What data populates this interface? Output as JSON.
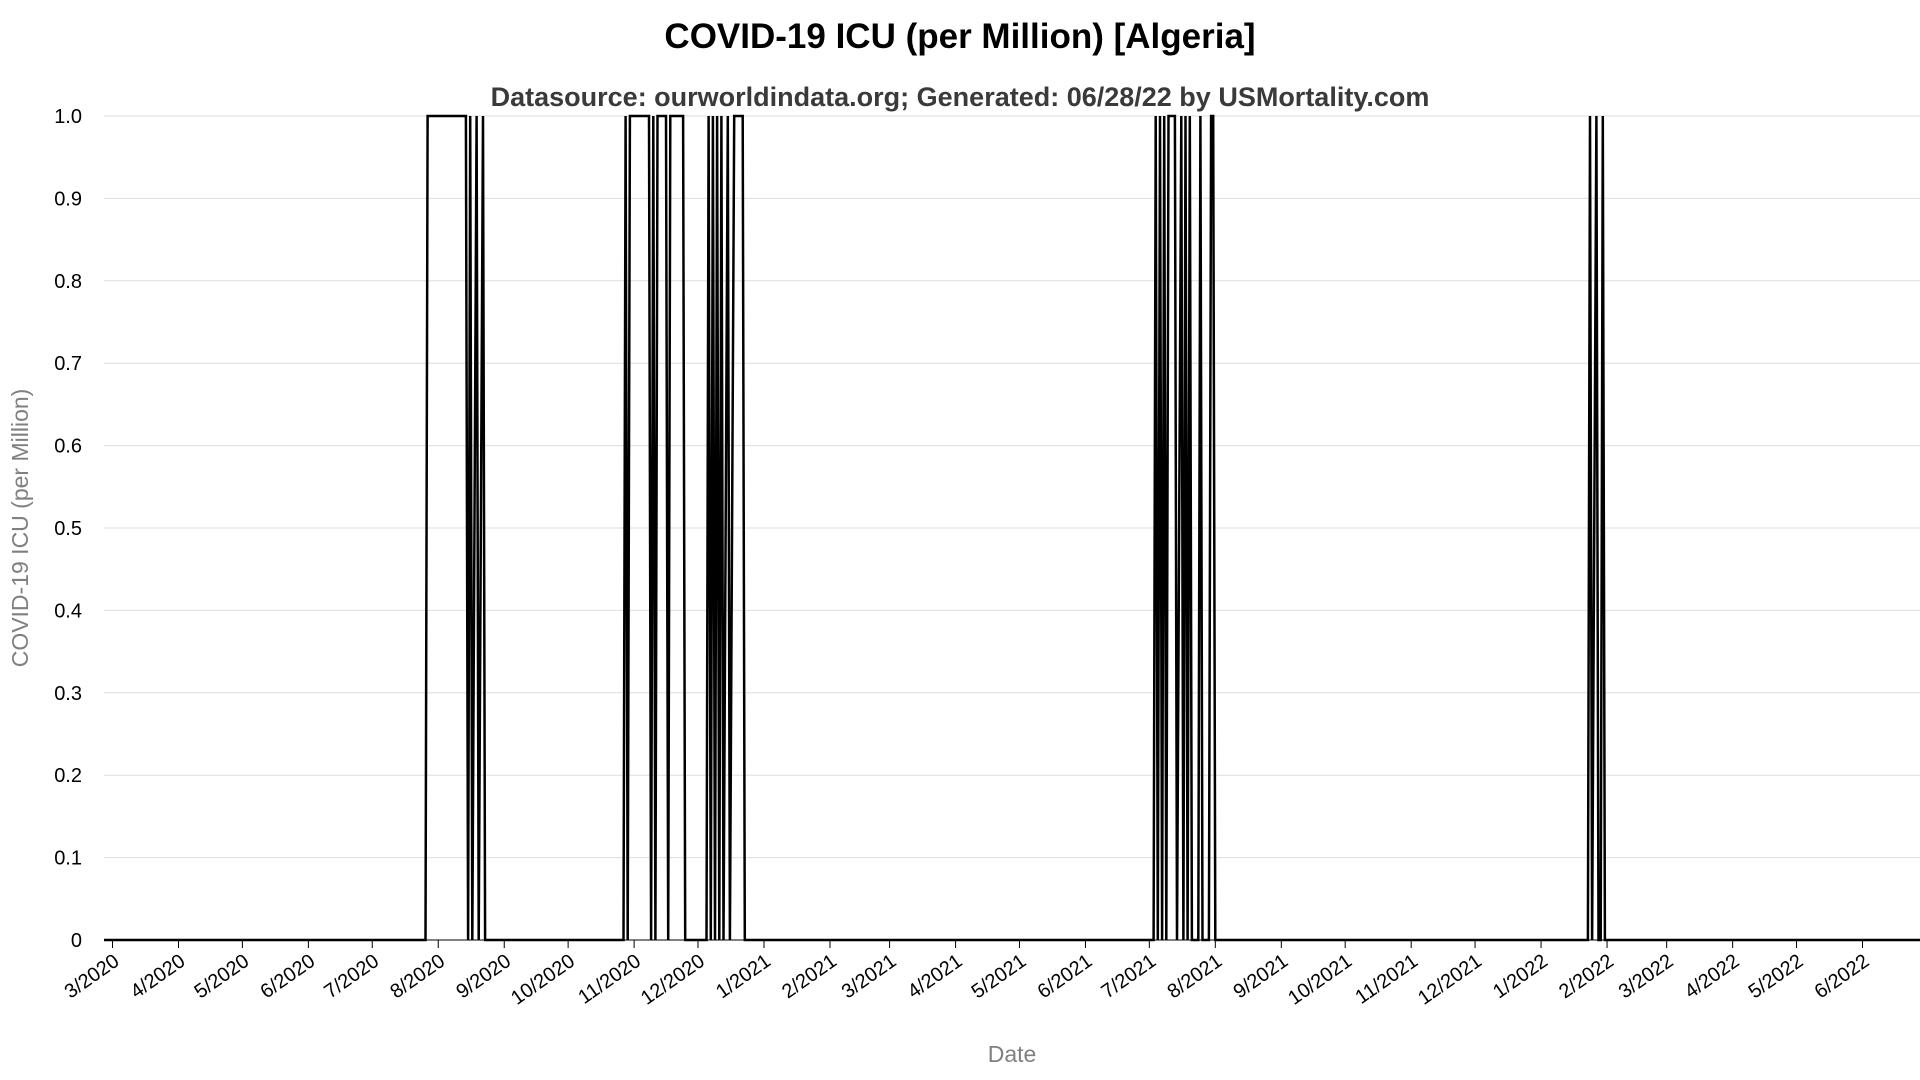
{
  "chart_data": {
    "type": "line",
    "title": "COVID-19 ICU (per Million) [Algeria]",
    "subtitle": "Datasource: ourworldindata.org; Generated: 06/28/22 by USMortality.com",
    "xlabel": "Date",
    "ylabel": "COVID-19 ICU (per Million)",
    "xlim": [
      "2020-02-26",
      "2022-06-28"
    ],
    "ylim": [
      0,
      1.0
    ],
    "y_ticks": [
      "0",
      "0.1",
      "0.2",
      "0.3",
      "0.4",
      "0.5",
      "0.6",
      "0.7",
      "0.8",
      "0.9",
      "1.0"
    ],
    "x_ticks": [
      "3/2020",
      "4/2020",
      "5/2020",
      "6/2020",
      "7/2020",
      "8/2020",
      "9/2020",
      "10/2020",
      "11/2020",
      "12/2020",
      "1/2021",
      "2/2021",
      "3/2021",
      "4/2021",
      "5/2021",
      "6/2021",
      "7/2021",
      "8/2021",
      "9/2021",
      "10/2021",
      "11/2021",
      "12/2021",
      "1/2022",
      "2/2022",
      "3/2022",
      "4/2022",
      "5/2022",
      "6/2022"
    ],
    "grid": true,
    "legend": "none",
    "series": [
      {
        "color": "#000000",
        "points": [
          [
            "2020-02-26",
            0
          ],
          [
            "2020-07-26",
            0
          ],
          [
            "2020-07-27",
            1
          ],
          [
            "2020-08-14",
            1
          ],
          [
            "2020-08-15",
            0
          ],
          [
            "2020-08-16",
            1
          ],
          [
            "2020-08-17",
            0
          ],
          [
            "2020-08-19",
            1
          ],
          [
            "2020-08-20",
            0
          ],
          [
            "2020-08-22",
            1
          ],
          [
            "2020-08-23",
            0
          ],
          [
            "2020-10-27",
            0
          ],
          [
            "2020-10-28",
            1
          ],
          [
            "2020-10-29",
            0
          ],
          [
            "2020-10-30",
            1
          ],
          [
            "2020-11-08",
            1
          ],
          [
            "2020-11-09",
            0
          ],
          [
            "2020-11-10",
            1
          ],
          [
            "2020-11-11",
            0
          ],
          [
            "2020-11-12",
            1
          ],
          [
            "2020-11-16",
            1
          ],
          [
            "2020-11-17",
            0
          ],
          [
            "2020-11-18",
            1
          ],
          [
            "2020-11-24",
            1
          ],
          [
            "2020-11-25",
            0
          ],
          [
            "2020-12-05",
            0
          ],
          [
            "2020-12-06",
            1
          ],
          [
            "2020-12-07",
            0
          ],
          [
            "2020-12-08",
            1
          ],
          [
            "2020-12-09",
            0
          ],
          [
            "2020-12-10",
            1
          ],
          [
            "2020-12-11",
            0
          ],
          [
            "2020-12-12",
            1
          ],
          [
            "2020-12-13",
            0
          ],
          [
            "2020-12-15",
            1
          ],
          [
            "2020-12-16",
            0
          ],
          [
            "2020-12-18",
            1
          ],
          [
            "2020-12-22",
            1
          ],
          [
            "2020-12-23",
            0
          ],
          [
            "2021-07-03",
            0
          ],
          [
            "2021-07-04",
            1
          ],
          [
            "2021-07-05",
            0
          ],
          [
            "2021-07-06",
            1
          ],
          [
            "2021-07-07",
            0
          ],
          [
            "2021-07-08",
            1
          ],
          [
            "2021-07-09",
            0
          ],
          [
            "2021-07-10",
            1
          ],
          [
            "2021-07-13",
            1
          ],
          [
            "2021-07-14",
            0
          ],
          [
            "2021-07-16",
            1
          ],
          [
            "2021-07-17",
            0
          ],
          [
            "2021-07-18",
            1
          ],
          [
            "2021-07-19",
            0
          ],
          [
            "2021-07-20",
            1
          ],
          [
            "2021-07-21",
            0
          ],
          [
            "2021-07-24",
            0
          ],
          [
            "2021-07-25",
            1
          ],
          [
            "2021-07-26",
            0
          ],
          [
            "2021-07-29",
            0
          ],
          [
            "2021-07-30",
            1
          ],
          [
            "2021-07-31",
            1
          ],
          [
            "2021-08-01",
            0
          ],
          [
            "2022-01-23",
            0
          ],
          [
            "2022-01-24",
            1
          ],
          [
            "2022-01-25",
            0
          ],
          [
            "2022-01-27",
            1
          ],
          [
            "2022-01-28",
            0
          ],
          [
            "2022-01-29",
            0
          ],
          [
            "2022-01-30",
            1
          ],
          [
            "2022-01-31",
            0
          ],
          [
            "2022-06-28",
            0
          ]
        ]
      }
    ]
  }
}
